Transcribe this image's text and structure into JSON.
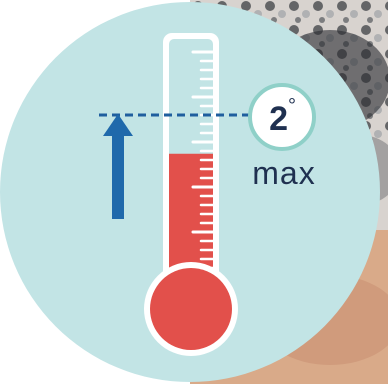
{
  "badge": {
    "value": "2",
    "degree_symbol": "°",
    "caption": "max"
  },
  "colors": {
    "circle_fill": "#c2e4e5",
    "mercury": "#e2504b",
    "tube_fill": "#ffffff",
    "tube_outline": "#ffffff",
    "tick": "#ffffff",
    "dashed_line": "#1f5e9e",
    "arrow": "#1f69ab",
    "badge_border": "#8fd0c8",
    "badge_fill": "#ffffff",
    "text_dark": "#1f3050",
    "photo_dark": "#2d2f33",
    "photo_mid": "#8d8f92",
    "photo_light": "#d8d3cf",
    "photo_skin": "#d9a27c"
  },
  "icons": {
    "thermometer": "thermometer-icon",
    "arrow": "arrow-up-icon"
  },
  "thermometer": {
    "fill_level": 0.55
  }
}
